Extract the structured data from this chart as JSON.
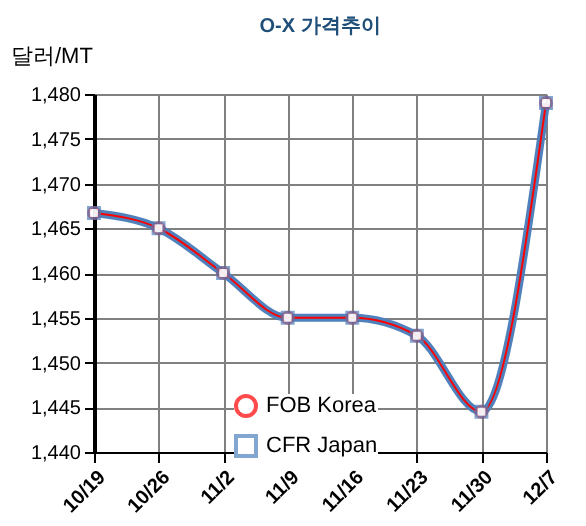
{
  "chart_data": {
    "type": "line",
    "title": "O-X 가격추이",
    "ylabel": "달러/MT",
    "categories": [
      "10/19",
      "10/26",
      "11/2",
      "11/9",
      "11/16",
      "11/23",
      "11/30",
      "12/7"
    ],
    "series": [
      {
        "name": "FOB Korea",
        "color": "#ff0000",
        "marker": "circle",
        "values": [
          1466.7,
          1465,
          1460,
          1455,
          1455,
          1453,
          1444.5,
          1479
        ]
      },
      {
        "name": "CFR Japan",
        "color": "#4f81bd",
        "marker": "square",
        "values": [
          1466.7,
          1465,
          1460,
          1455,
          1455,
          1453,
          1444.5,
          1479
        ]
      }
    ],
    "ylim": [
      1440,
      1480
    ],
    "yticks": [
      {
        "value": 1440,
        "label": "1,440"
      },
      {
        "value": 1445,
        "label": "1,445"
      },
      {
        "value": 1450,
        "label": "1,450"
      },
      {
        "value": 1455,
        "label": "1,455"
      },
      {
        "value": 1460,
        "label": "1,460"
      },
      {
        "value": 1465,
        "label": "1,465"
      },
      {
        "value": 1470,
        "label": "1,470"
      },
      {
        "value": 1475,
        "label": "1,475"
      },
      {
        "value": 1480,
        "label": "1,480"
      }
    ],
    "grid": true,
    "legend": "bottom"
  }
}
